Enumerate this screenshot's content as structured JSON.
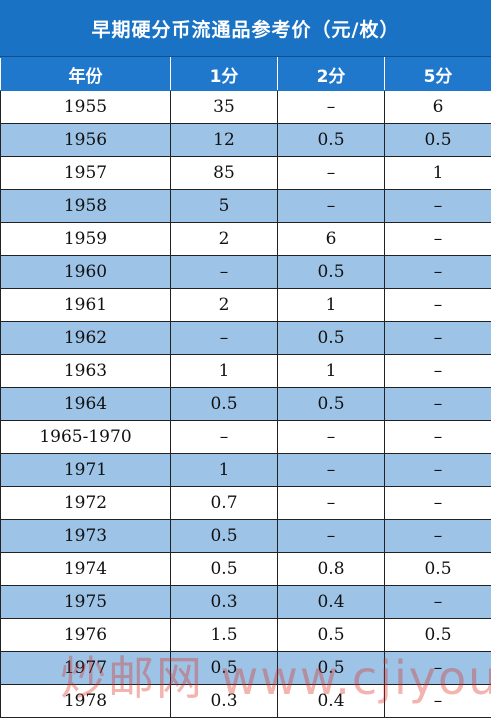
{
  "header": {
    "title": "早期硬分币流通品参考价（元/枚）"
  },
  "table": {
    "columns": [
      "年份",
      "1分",
      "2分",
      "5分"
    ],
    "rows": [
      [
        "1955",
        "35",
        "–",
        "6"
      ],
      [
        "1956",
        "12",
        "0.5",
        "0.5"
      ],
      [
        "1957",
        "85",
        "–",
        "1"
      ],
      [
        "1958",
        "5",
        "–",
        "–"
      ],
      [
        "1959",
        "2",
        "6",
        "–"
      ],
      [
        "1960",
        "–",
        "0.5",
        "–"
      ],
      [
        "1961",
        "2",
        "1",
        "–"
      ],
      [
        "1962",
        "–",
        "0.5",
        "–"
      ],
      [
        "1963",
        "1",
        "1",
        "–"
      ],
      [
        "1964",
        "0.5",
        "0.5",
        "–"
      ],
      [
        "1965-1970",
        "–",
        "–",
        "–"
      ],
      [
        "1971",
        "1",
        "–",
        "–"
      ],
      [
        "1972",
        "0.7",
        "–",
        "–"
      ],
      [
        "1973",
        "0.5",
        "–",
        "–"
      ],
      [
        "1974",
        "0.5",
        "0.8",
        "0.5"
      ],
      [
        "1975",
        "0.3",
        "0.4",
        "–"
      ],
      [
        "1976",
        "1.5",
        "0.5",
        "0.5"
      ],
      [
        "1977",
        "0.5",
        "0.5",
        "–"
      ],
      [
        "1978",
        "0.3",
        "0.4",
        "–"
      ]
    ]
  },
  "watermark": "炒邮网 www.cjiyou.net"
}
